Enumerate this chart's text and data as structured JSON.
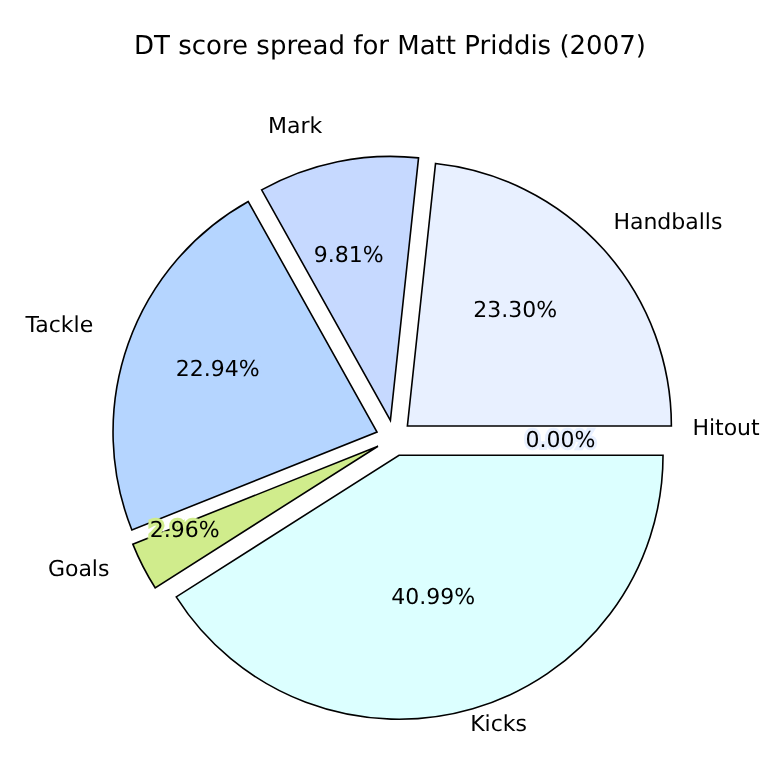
{
  "chart_data": {
    "type": "pie",
    "title": "DT score spread for Matt Priddis (2007)",
    "categories": [
      "Handballs",
      "Mark",
      "Tackle",
      "Goals",
      "Kicks",
      "Hitout"
    ],
    "values": [
      23.3,
      9.81,
      22.94,
      2.96,
      40.99,
      0.0
    ],
    "value_labels": [
      "23.30%",
      "9.81%",
      "22.94%",
      "2.96%",
      "40.99%",
      "0.00%"
    ],
    "colors": [
      "#e8f0ff",
      "#c6d9ff",
      "#b5d5ff",
      "#d0ec8c",
      "#dcffff",
      "#e8f0ff"
    ]
  }
}
